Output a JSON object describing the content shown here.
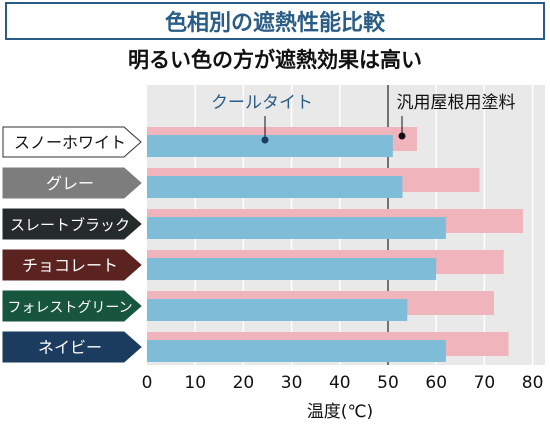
{
  "header": {
    "title": "色相別の遮熱性能比較",
    "subtitle": "明るい色の方が遮熱効果は高い"
  },
  "chart_data": {
    "type": "bar",
    "orientation": "horizontal",
    "categories": [
      "スノーホワイト",
      "グレー",
      "スレートブラック",
      "チョコレート",
      "フォレストグリーン",
      "ネイビー"
    ],
    "category_colors": [
      "#ffffff",
      "#7d7d7d",
      "#252b2b",
      "#5a2320",
      "#17553e",
      "#1b3c5e"
    ],
    "series": [
      {
        "name": "クールタイト",
        "color": "#7fbcd8",
        "values": [
          51,
          53,
          62,
          60,
          54,
          62
        ]
      },
      {
        "name": "汎用屋根用塗料",
        "color": "#f0b4bc",
        "values": [
          56,
          69,
          78,
          74,
          72,
          75
        ]
      }
    ],
    "xlabel": "温度(℃)",
    "xlim": [
      0,
      83
    ],
    "xticks": [
      0,
      10,
      20,
      30,
      40,
      50,
      60,
      70,
      80
    ],
    "reference_line": 50,
    "grid": true
  }
}
